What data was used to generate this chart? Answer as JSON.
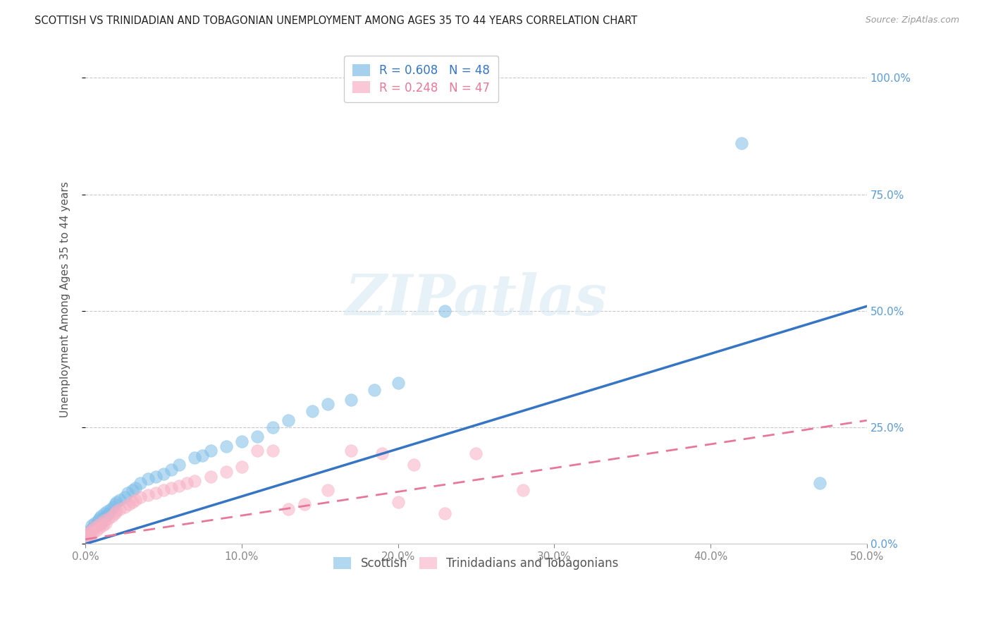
{
  "title": "SCOTTISH VS TRINIDADIAN AND TOBAGONIAN UNEMPLOYMENT AMONG AGES 35 TO 44 YEARS CORRELATION CHART",
  "source": "Source: ZipAtlas.com",
  "ylabel": "Unemployment Among Ages 35 to 44 years",
  "xlim": [
    0.0,
    0.5
  ],
  "ylim": [
    0.0,
    1.05
  ],
  "xticks": [
    0.0,
    0.1,
    0.2,
    0.3,
    0.4,
    0.5
  ],
  "yticks": [
    0.0,
    0.25,
    0.5,
    0.75,
    1.0
  ],
  "blue_R": 0.608,
  "blue_N": 48,
  "pink_R": 0.248,
  "pink_N": 47,
  "blue_color": "#7fbee8",
  "pink_color": "#f7b0c4",
  "blue_line_color": "#3575c4",
  "pink_line_color": "#e87898",
  "blue_line_start_y": 0.0,
  "blue_line_end_y": 0.51,
  "pink_line_start_y": 0.01,
  "pink_line_end_y": 0.265,
  "scottish_x": [
    0.0,
    0.0,
    0.002,
    0.003,
    0.004,
    0.005,
    0.006,
    0.007,
    0.008,
    0.009,
    0.01,
    0.01,
    0.011,
    0.012,
    0.013,
    0.014,
    0.015,
    0.016,
    0.018,
    0.019,
    0.02,
    0.022,
    0.025,
    0.027,
    0.03,
    0.032,
    0.035,
    0.04,
    0.045,
    0.05,
    0.055,
    0.06,
    0.07,
    0.075,
    0.08,
    0.09,
    0.1,
    0.11,
    0.12,
    0.13,
    0.145,
    0.155,
    0.17,
    0.185,
    0.2,
    0.23,
    0.42,
    0.47
  ],
  "scottish_y": [
    0.015,
    0.025,
    0.02,
    0.03,
    0.04,
    0.035,
    0.045,
    0.04,
    0.05,
    0.055,
    0.045,
    0.06,
    0.055,
    0.065,
    0.06,
    0.07,
    0.065,
    0.075,
    0.08,
    0.085,
    0.09,
    0.095,
    0.1,
    0.11,
    0.115,
    0.12,
    0.13,
    0.14,
    0.145,
    0.15,
    0.16,
    0.17,
    0.185,
    0.19,
    0.2,
    0.21,
    0.22,
    0.23,
    0.25,
    0.265,
    0.285,
    0.3,
    0.31,
    0.33,
    0.345,
    0.5,
    0.86,
    0.13
  ],
  "tnt_x": [
    0.0,
    0.0,
    0.001,
    0.002,
    0.003,
    0.004,
    0.005,
    0.006,
    0.007,
    0.008,
    0.009,
    0.01,
    0.011,
    0.012,
    0.013,
    0.015,
    0.017,
    0.019,
    0.02,
    0.022,
    0.025,
    0.028,
    0.03,
    0.032,
    0.035,
    0.04,
    0.045,
    0.05,
    0.055,
    0.06,
    0.065,
    0.07,
    0.08,
    0.09,
    0.1,
    0.11,
    0.12,
    0.13,
    0.14,
    0.155,
    0.17,
    0.19,
    0.2,
    0.21,
    0.23,
    0.25,
    0.28
  ],
  "tnt_y": [
    0.01,
    0.02,
    0.015,
    0.025,
    0.02,
    0.03,
    0.025,
    0.035,
    0.03,
    0.04,
    0.035,
    0.045,
    0.04,
    0.05,
    0.045,
    0.055,
    0.06,
    0.065,
    0.07,
    0.075,
    0.08,
    0.085,
    0.09,
    0.095,
    0.1,
    0.105,
    0.11,
    0.115,
    0.12,
    0.125,
    0.13,
    0.135,
    0.145,
    0.155,
    0.165,
    0.2,
    0.2,
    0.075,
    0.085,
    0.115,
    0.2,
    0.195,
    0.09,
    0.17,
    0.065,
    0.195,
    0.115
  ],
  "watermark_text": "ZIPatlas",
  "background_color": "#ffffff",
  "grid_color": "#c8c8c8",
  "title_color": "#222222",
  "axis_color": "#888888",
  "right_tick_color": "#5b9bd5"
}
